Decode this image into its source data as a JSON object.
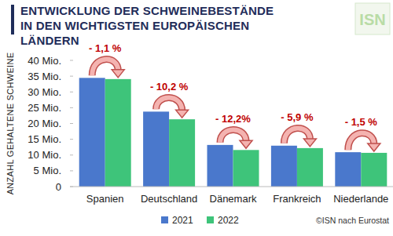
{
  "chart_data": {
    "type": "bar",
    "title": "ENTWICKLUNG DER SCHWEINEBESTÄNDE IN DEN WICHTIGSTEN EUROPÄISCHEN LÄNDERN",
    "y_label": "ANZAHL GEHALTENE SCHWEINE",
    "categories": [
      "Spanien",
      "Deutschland",
      "Dänemark",
      "Frankreich",
      "Niederlande"
    ],
    "series": [
      {
        "name": "2021",
        "color": "#4a78cc",
        "values": [
          34.45,
          23.76,
          13.2,
          12.97,
          10.9
        ]
      },
      {
        "name": "2022",
        "color": "#3ec47a",
        "values": [
          34.07,
          21.33,
          11.6,
          12.2,
          10.7
        ]
      }
    ],
    "annotations": [
      "- 1,1 %",
      "- 10,2 %",
      "- 12,2%",
      "- 5,9 %",
      "- 1,5 %"
    ],
    "ylim": [
      0,
      40
    ],
    "yticks": [
      0,
      {
        "value": 5,
        "label": "5 Mio."
      },
      {
        "value": 10,
        "label": "10 Mio."
      },
      {
        "value": 15,
        "label": "15 Mio."
      },
      {
        "value": 20,
        "label": "20 Mio."
      },
      {
        "value": 25,
        "label": "25 Mio."
      },
      {
        "value": 30,
        "label": "30 Mio."
      },
      {
        "value": 35,
        "label": "35 Mio."
      },
      {
        "value": 40,
        "label": "40 Mio."
      }
    ],
    "grid": false,
    "legend": "bottom",
    "source": "©ISN nach Eurostat",
    "logo": "ISN"
  }
}
